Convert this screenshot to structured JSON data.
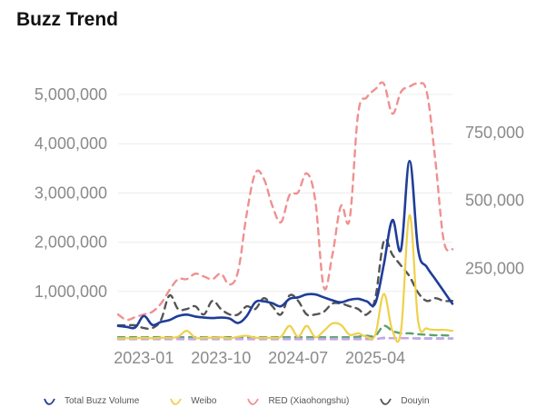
{
  "title": "Buzz Trend",
  "chart_data": {
    "type": "line",
    "title": "Buzz Trend",
    "x": [
      "2022-10",
      "2022-11",
      "2022-12",
      "2023-01",
      "2023-02",
      "2023-03",
      "2023-04",
      "2023-05",
      "2023-06",
      "2023-07",
      "2023-08",
      "2023-09",
      "2023-10",
      "2023-11",
      "2023-12",
      "2024-01",
      "2024-02",
      "2024-03",
      "2024-04",
      "2024-05",
      "2024-06",
      "2024-07",
      "2024-08",
      "2024-09",
      "2024-10",
      "2024-11",
      "2024-12",
      "2025-01",
      "2025-02",
      "2025-03",
      "2025-04",
      "2025-05",
      "2025-06",
      "2025-07",
      "2025-08",
      "2025-09",
      "2025-10",
      "2025-11",
      "2025-12",
      "2026-01"
    ],
    "x_tick_labels": [
      "2023-01",
      "2023-10",
      "2024-07",
      "2025-04"
    ],
    "left_axis": {
      "ticks": [
        1000000,
        2000000,
        3000000,
        4000000,
        5000000
      ],
      "tick_labels": [
        "1,000,000",
        "2,000,000",
        "3,000,000",
        "4,000,000",
        "5,000,000"
      ],
      "range": [
        0,
        5500000
      ]
    },
    "right_axis": {
      "ticks": [
        250000,
        500000,
        750000
      ],
      "tick_labels": [
        "250,000",
        "500,000",
        "750,000"
      ],
      "range": [
        0,
        1000000
      ]
    },
    "grid": true,
    "legend_position": "bottom",
    "series": [
      {
        "name": "Total Buzz Volume",
        "axis": "left",
        "style": "solid",
        "color": "#1f3d99",
        "values": [
          300000,
          280000,
          270000,
          500000,
          320000,
          380000,
          420000,
          500000,
          530000,
          490000,
          470000,
          460000,
          470000,
          450000,
          360000,
          500000,
          780000,
          800000,
          760000,
          700000,
          850000,
          880000,
          940000,
          940000,
          880000,
          820000,
          780000,
          830000,
          850000,
          800000,
          760000,
          1550000,
          2450000,
          1850000,
          3650000,
          1850000,
          1500000,
          1250000,
          1000000,
          750000
        ]
      },
      {
        "name": "Weibo",
        "axis": "left",
        "style": "solid",
        "color": "#f0d04a",
        "values": [
          50000,
          50000,
          50000,
          60000,
          50000,
          60000,
          60000,
          80000,
          200000,
          60000,
          60000,
          60000,
          70000,
          50000,
          80000,
          100000,
          60000,
          60000,
          60000,
          80000,
          300000,
          80000,
          300000,
          70000,
          200000,
          350000,
          320000,
          120000,
          150000,
          80000,
          120000,
          950000,
          200000,
          200000,
          2550000,
          400000,
          250000,
          220000,
          220000,
          200000
        ]
      },
      {
        "name": "RED (Xiaohongshu)",
        "axis": "right",
        "style": "dashed",
        "color": "#f09090",
        "values": [
          80000,
          60000,
          70000,
          80000,
          90000,
          120000,
          170000,
          210000,
          210000,
          230000,
          220000,
          210000,
          230000,
          190000,
          240000,
          450000,
          600000,
          580000,
          480000,
          420000,
          520000,
          530000,
          600000,
          500000,
          180000,
          300000,
          480000,
          430000,
          820000,
          880000,
          910000,
          930000,
          820000,
          900000,
          920000,
          930000,
          900000,
          650000,
          350000,
          320000
        ]
      },
      {
        "name": "Douyin",
        "axis": "right",
        "style": "dashed",
        "color": "#555555",
        "values": [
          40000,
          40000,
          40000,
          30000,
          30000,
          60000,
          150000,
          100000,
          100000,
          110000,
          80000,
          130000,
          100000,
          80000,
          80000,
          110000,
          100000,
          140000,
          110000,
          80000,
          150000,
          130000,
          80000,
          80000,
          90000,
          120000,
          120000,
          110000,
          100000,
          80000,
          140000,
          350000,
          300000,
          260000,
          220000,
          160000,
          130000,
          140000,
          130000,
          130000
        ]
      },
      {
        "name": "",
        "axis": "left",
        "style": "dashed",
        "color": "#5aa36a",
        "values": [
          70000,
          70000,
          70000,
          70000,
          70000,
          70000,
          70000,
          70000,
          70000,
          70000,
          70000,
          70000,
          70000,
          70000,
          70000,
          70000,
          70000,
          70000,
          70000,
          70000,
          70000,
          70000,
          70000,
          70000,
          70000,
          70000,
          70000,
          70000,
          80000,
          100000,
          100000,
          300000,
          200000,
          150000,
          150000,
          130000,
          120000,
          110000,
          110000,
          100000
        ]
      },
      {
        "name": "",
        "axis": "left",
        "style": "dashed",
        "color": "#8fb0e0",
        "values": [
          40000,
          40000,
          40000,
          40000,
          40000,
          40000,
          40000,
          40000,
          40000,
          40000,
          40000,
          40000,
          40000,
          40000,
          40000,
          40000,
          40000,
          40000,
          40000,
          40000,
          40000,
          40000,
          40000,
          40000,
          40000,
          40000,
          40000,
          40000,
          40000,
          40000,
          40000,
          50000,
          50000,
          50000,
          50000,
          50000,
          50000,
          50000,
          50000,
          50000
        ]
      },
      {
        "name": "",
        "axis": "left",
        "style": "dashed",
        "color": "#c9a6e8",
        "values": [
          30000,
          30000,
          30000,
          30000,
          30000,
          30000,
          30000,
          30000,
          30000,
          30000,
          30000,
          30000,
          30000,
          30000,
          30000,
          30000,
          30000,
          30000,
          30000,
          30000,
          30000,
          30000,
          30000,
          30000,
          30000,
          30000,
          30000,
          30000,
          30000,
          30000,
          30000,
          60000,
          50000,
          50000,
          50000,
          40000,
          40000,
          40000,
          40000,
          40000
        ]
      }
    ]
  },
  "legend": [
    {
      "label": "Total Buzz Volume",
      "color": "#1f3d99"
    },
    {
      "label": "Weibo",
      "color": "#f0d04a"
    },
    {
      "label": "RED (Xiaohongshu)",
      "color": "#f09090"
    },
    {
      "label": "Douyin",
      "color": "#555555"
    }
  ]
}
